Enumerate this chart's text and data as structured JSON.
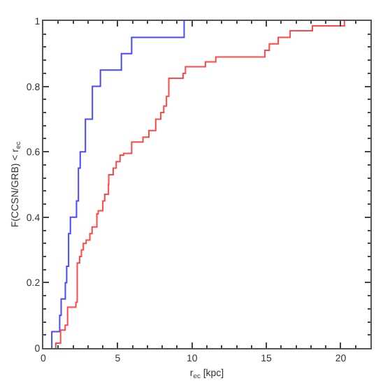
{
  "chart_data": {
    "type": "step",
    "xlabel": "r$_{ec}$ [kpc]",
    "ylabel": "F(CCSN/GRB) < r$_{ec}$",
    "xlim": [
      0,
      22
    ],
    "xticks": [
      0,
      5,
      10,
      15,
      20
    ],
    "ylim": [
      0,
      1
    ],
    "yticks": [
      0,
      0.2,
      0.4,
      0.6,
      0.8,
      1
    ],
    "grid": false,
    "series": [
      {
        "color": "#4848ff",
        "x": [
          0.57,
          0.57,
          1.1,
          1.2,
          1.48,
          1.57,
          1.7,
          1.82,
          2.23,
          2.36,
          2.48,
          2.83,
          3.3,
          3.84,
          5.25,
          5.94,
          9.47
        ],
        "values": [
          0,
          0.05,
          0.1,
          0.15,
          0.2,
          0.25,
          0.35,
          0.4,
          0.45,
          0.55,
          0.6,
          0.7,
          0.8,
          0.85,
          0.9,
          0.95,
          1
        ]
      },
      {
        "color": "#ff4848",
        "x": [
          0.84,
          0.84,
          1.16,
          1.47,
          1.63,
          2.19,
          2.28,
          2.44,
          2.56,
          2.69,
          2.88,
          3.13,
          3.28,
          3.6,
          3.69,
          4.0,
          4.13,
          4.38,
          4.4,
          4.7,
          4.9,
          5.16,
          5.4,
          5.94,
          6.7,
          7.1,
          7.56,
          7.9,
          8.1,
          8.28,
          8.44,
          9.4,
          9.56,
          10.9,
          11.6,
          14.9,
          15.2,
          15.8,
          16.6,
          18.1,
          20.25
        ],
        "values": [
          0,
          0.015,
          0.055,
          0.07,
          0.125,
          0.14,
          0.26,
          0.28,
          0.3,
          0.32,
          0.33,
          0.35,
          0.37,
          0.41,
          0.42,
          0.45,
          0.47,
          0.5,
          0.53,
          0.55,
          0.57,
          0.59,
          0.595,
          0.63,
          0.645,
          0.665,
          0.7,
          0.72,
          0.74,
          0.77,
          0.825,
          0.84,
          0.86,
          0.875,
          0.89,
          0.91,
          0.93,
          0.95,
          0.97,
          0.985,
          1
        ]
      }
    ]
  }
}
